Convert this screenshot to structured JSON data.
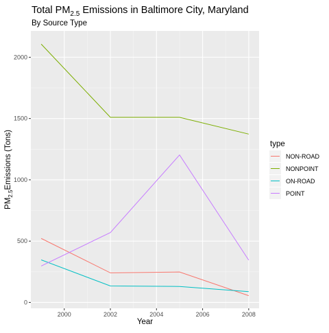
{
  "chart_data": {
    "type": "line",
    "title": {
      "pre": "Total PM",
      "sub": "2.5",
      "post": " Emissions in Baltimore City, Maryland"
    },
    "subtitle": "By Source Type",
    "xlabel": "Year",
    "ylabel": {
      "pre": "PM",
      "sub": "2.5",
      "post": "Emissions (Tons)"
    },
    "x": [
      1999,
      2002,
      2005,
      2008
    ],
    "xlim": [
      1998.55,
      2008.45
    ],
    "ylim": [
      -48,
      2215
    ],
    "x_ticks": [
      2000,
      2002,
      2004,
      2006,
      2008
    ],
    "y_ticks": [
      0,
      500,
      1000,
      1500,
      2000
    ],
    "x_tick_labels": [
      "2000",
      "2002",
      "2004",
      "2006",
      "2008"
    ],
    "y_tick_labels": [
      "0",
      "500",
      "1000",
      "1500",
      "2000"
    ],
    "grid": true,
    "legend": {
      "title": "type",
      "position": "right"
    },
    "series": [
      {
        "name": "NON-ROAD",
        "color": "#F8766D",
        "values": [
          522,
          241,
          248,
          55
        ]
      },
      {
        "name": "NONPOINT",
        "color": "#7CAE00",
        "values": [
          2107,
          1510,
          1510,
          1373
        ]
      },
      {
        "name": "ON-ROAD",
        "color": "#00BFC4",
        "values": [
          347,
          134,
          130,
          88
        ]
      },
      {
        "name": "POINT",
        "color": "#C77CFF",
        "values": [
          297,
          570,
          1203,
          345
        ]
      }
    ]
  }
}
